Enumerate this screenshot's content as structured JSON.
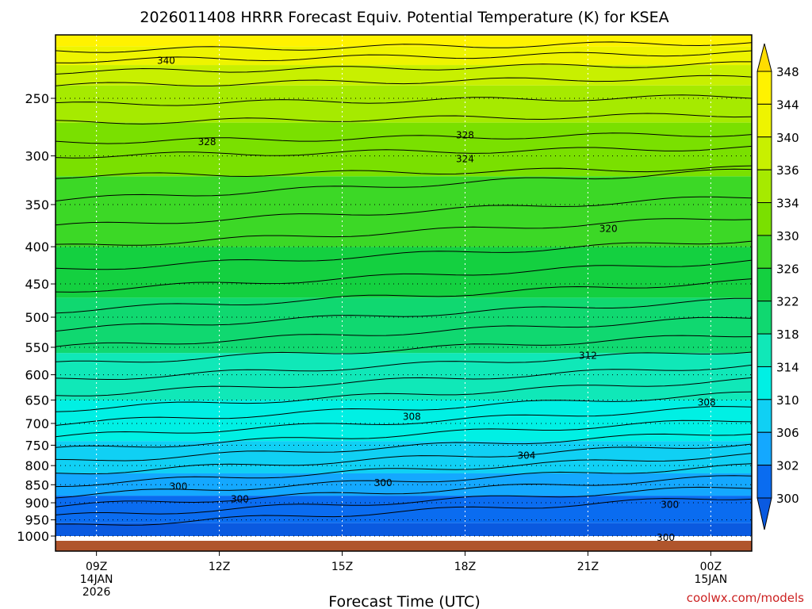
{
  "chart_data": {
    "type": "area",
    "title": "2026011408 HRRR Forecast Equiv. Potential Temperature (K) for KSEA",
    "xlabel": "Forecast Time (UTC)",
    "ylabel": "",
    "y_scale": "log-pressure, inverted",
    "ylim": [
      1000,
      200
    ],
    "x_ticks": [
      {
        "label": "09Z",
        "sub1": "14JAN",
        "sub2": "2026",
        "hour": 9
      },
      {
        "label": "12Z",
        "sub1": "",
        "sub2": "",
        "hour": 12
      },
      {
        "label": "15Z",
        "sub1": "",
        "sub2": "",
        "hour": 15
      },
      {
        "label": "18Z",
        "sub1": "",
        "sub2": "",
        "hour": 18
      },
      {
        "label": "21Z",
        "sub1": "",
        "sub2": "",
        "hour": 21
      },
      {
        "label": "00Z",
        "sub1": "15JAN",
        "sub2": "",
        "hour": 24
      }
    ],
    "xlim_hours": [
      8,
      25
    ],
    "y_ticks": [
      "250",
      "300",
      "350",
      "400",
      "450",
      "500",
      "550",
      "600",
      "650",
      "700",
      "750",
      "800",
      "850",
      "900",
      "950",
      "1000"
    ],
    "y_tick_values": [
      250,
      300,
      350,
      400,
      450,
      500,
      550,
      600,
      650,
      700,
      750,
      800,
      850,
      900,
      950,
      1000
    ],
    "grid": true,
    "colorbar": {
      "labels": [
        "348",
        "344",
        "340",
        "336",
        "334",
        "330",
        "326",
        "322",
        "318",
        "314",
        "310",
        "306",
        "302",
        "300"
      ],
      "values": [
        348,
        344,
        340,
        336,
        334,
        330,
        326,
        322,
        318,
        314,
        310,
        306,
        302,
        300
      ],
      "colors": [
        "#ffdd00",
        "#fff200",
        "#eef400",
        "#c8f000",
        "#a6ea00",
        "#7ae000",
        "#3cd826",
        "#14d040",
        "#10d870",
        "#10e8b8",
        "#00f0e4",
        "#10d0f4",
        "#14a8ff",
        "#0a6cf0",
        "#0a5ae0"
      ]
    },
    "contour_labels": [
      {
        "text": "340",
        "hour": 10.7,
        "p": 222
      },
      {
        "text": "328",
        "hour": 11.7,
        "p": 287
      },
      {
        "text": "328",
        "hour": 18.0,
        "p": 281
      },
      {
        "text": "324",
        "hour": 18.0,
        "p": 303
      },
      {
        "text": "320",
        "hour": 21.5,
        "p": 378
      },
      {
        "text": "312",
        "hour": 21.0,
        "p": 565
      },
      {
        "text": "308",
        "hour": 23.9,
        "p": 655
      },
      {
        "text": "308",
        "hour": 16.7,
        "p": 685
      },
      {
        "text": "304",
        "hour": 19.5,
        "p": 775
      },
      {
        "text": "300",
        "hour": 16.0,
        "p": 845
      },
      {
        "text": "300",
        "hour": 11.0,
        "p": 855
      },
      {
        "text": "300",
        "hour": 12.5,
        "p": 890
      },
      {
        "text": "300",
        "hour": 23.0,
        "p": 905
      },
      {
        "text": "300",
        "hour": 22.9,
        "p": 1005
      }
    ],
    "series": [
      {
        "name": "",
        "values": [
          {
            "hour": 8,
            "p": 200,
            "theta": 346
          },
          {
            "hour": 12,
            "p": 200,
            "theta": 346
          },
          {
            "hour": 16,
            "p": 200,
            "theta": 345
          },
          {
            "hour": 20,
            "p": 200,
            "theta": 344
          },
          {
            "hour": 25,
            "p": 200,
            "theta": 344
          }
        ]
      }
    ]
  },
  "credit": "coolwx.com/models"
}
